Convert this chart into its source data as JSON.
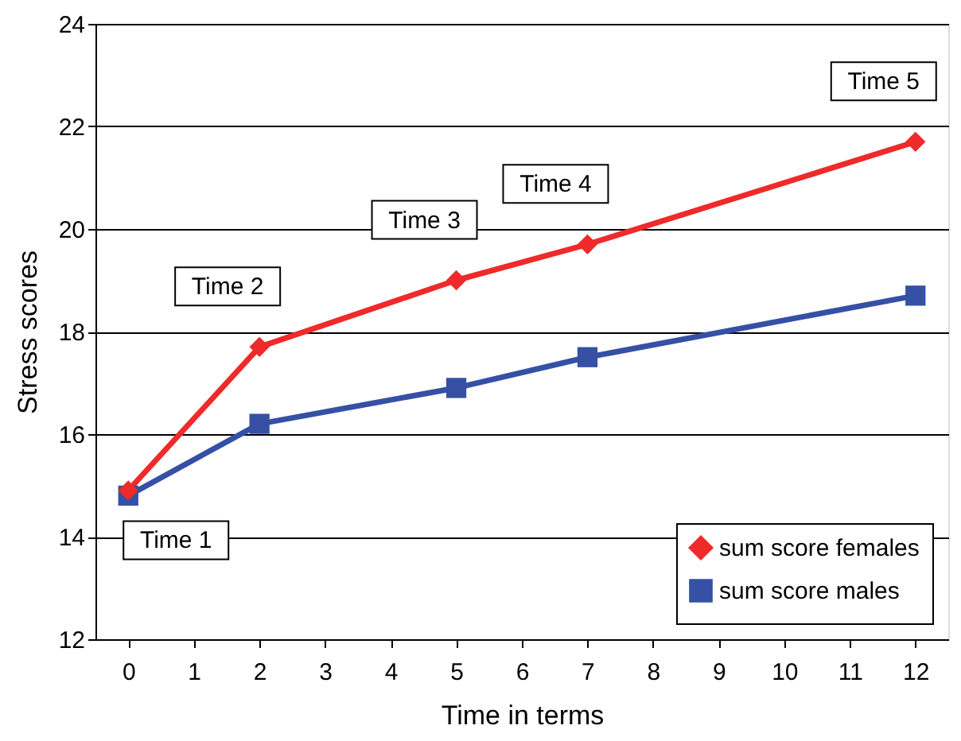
{
  "chart_data": {
    "type": "line",
    "xlabel": "Time in terms",
    "ylabel": "Stress scores",
    "x": [
      0,
      2,
      5,
      7,
      12
    ],
    "xlim": [
      -0.5,
      12.5
    ],
    "xticks": [
      0,
      1,
      2,
      3,
      4,
      5,
      6,
      7,
      8,
      9,
      10,
      11,
      12
    ],
    "ylim": [
      12,
      24
    ],
    "yticks": [
      12,
      14,
      16,
      18,
      20,
      22,
      24
    ],
    "grid": "y",
    "legend": "bottom right",
    "line_style": "solid",
    "series": [
      {
        "name": "sum score females",
        "color": "#ee2a2a",
        "marker": "diamond",
        "values": [
          14.9,
          17.7,
          19.0,
          19.7,
          21.7
        ]
      },
      {
        "name": "sum score males",
        "color": "#3550a5",
        "marker": "square",
        "values": [
          14.8,
          16.2,
          16.9,
          17.5,
          18.7
        ]
      }
    ],
    "annotations": [
      {
        "text": "Time 1",
        "x": 0,
        "y": 14.8
      },
      {
        "text": "Time 2",
        "x": 2,
        "y": 17.7
      },
      {
        "text": "Time 3",
        "x": 5,
        "y": 19.0
      },
      {
        "text": "Time 4",
        "x": 7,
        "y": 19.7
      },
      {
        "text": "Time 5",
        "x": 12,
        "y": 21.7
      }
    ]
  }
}
